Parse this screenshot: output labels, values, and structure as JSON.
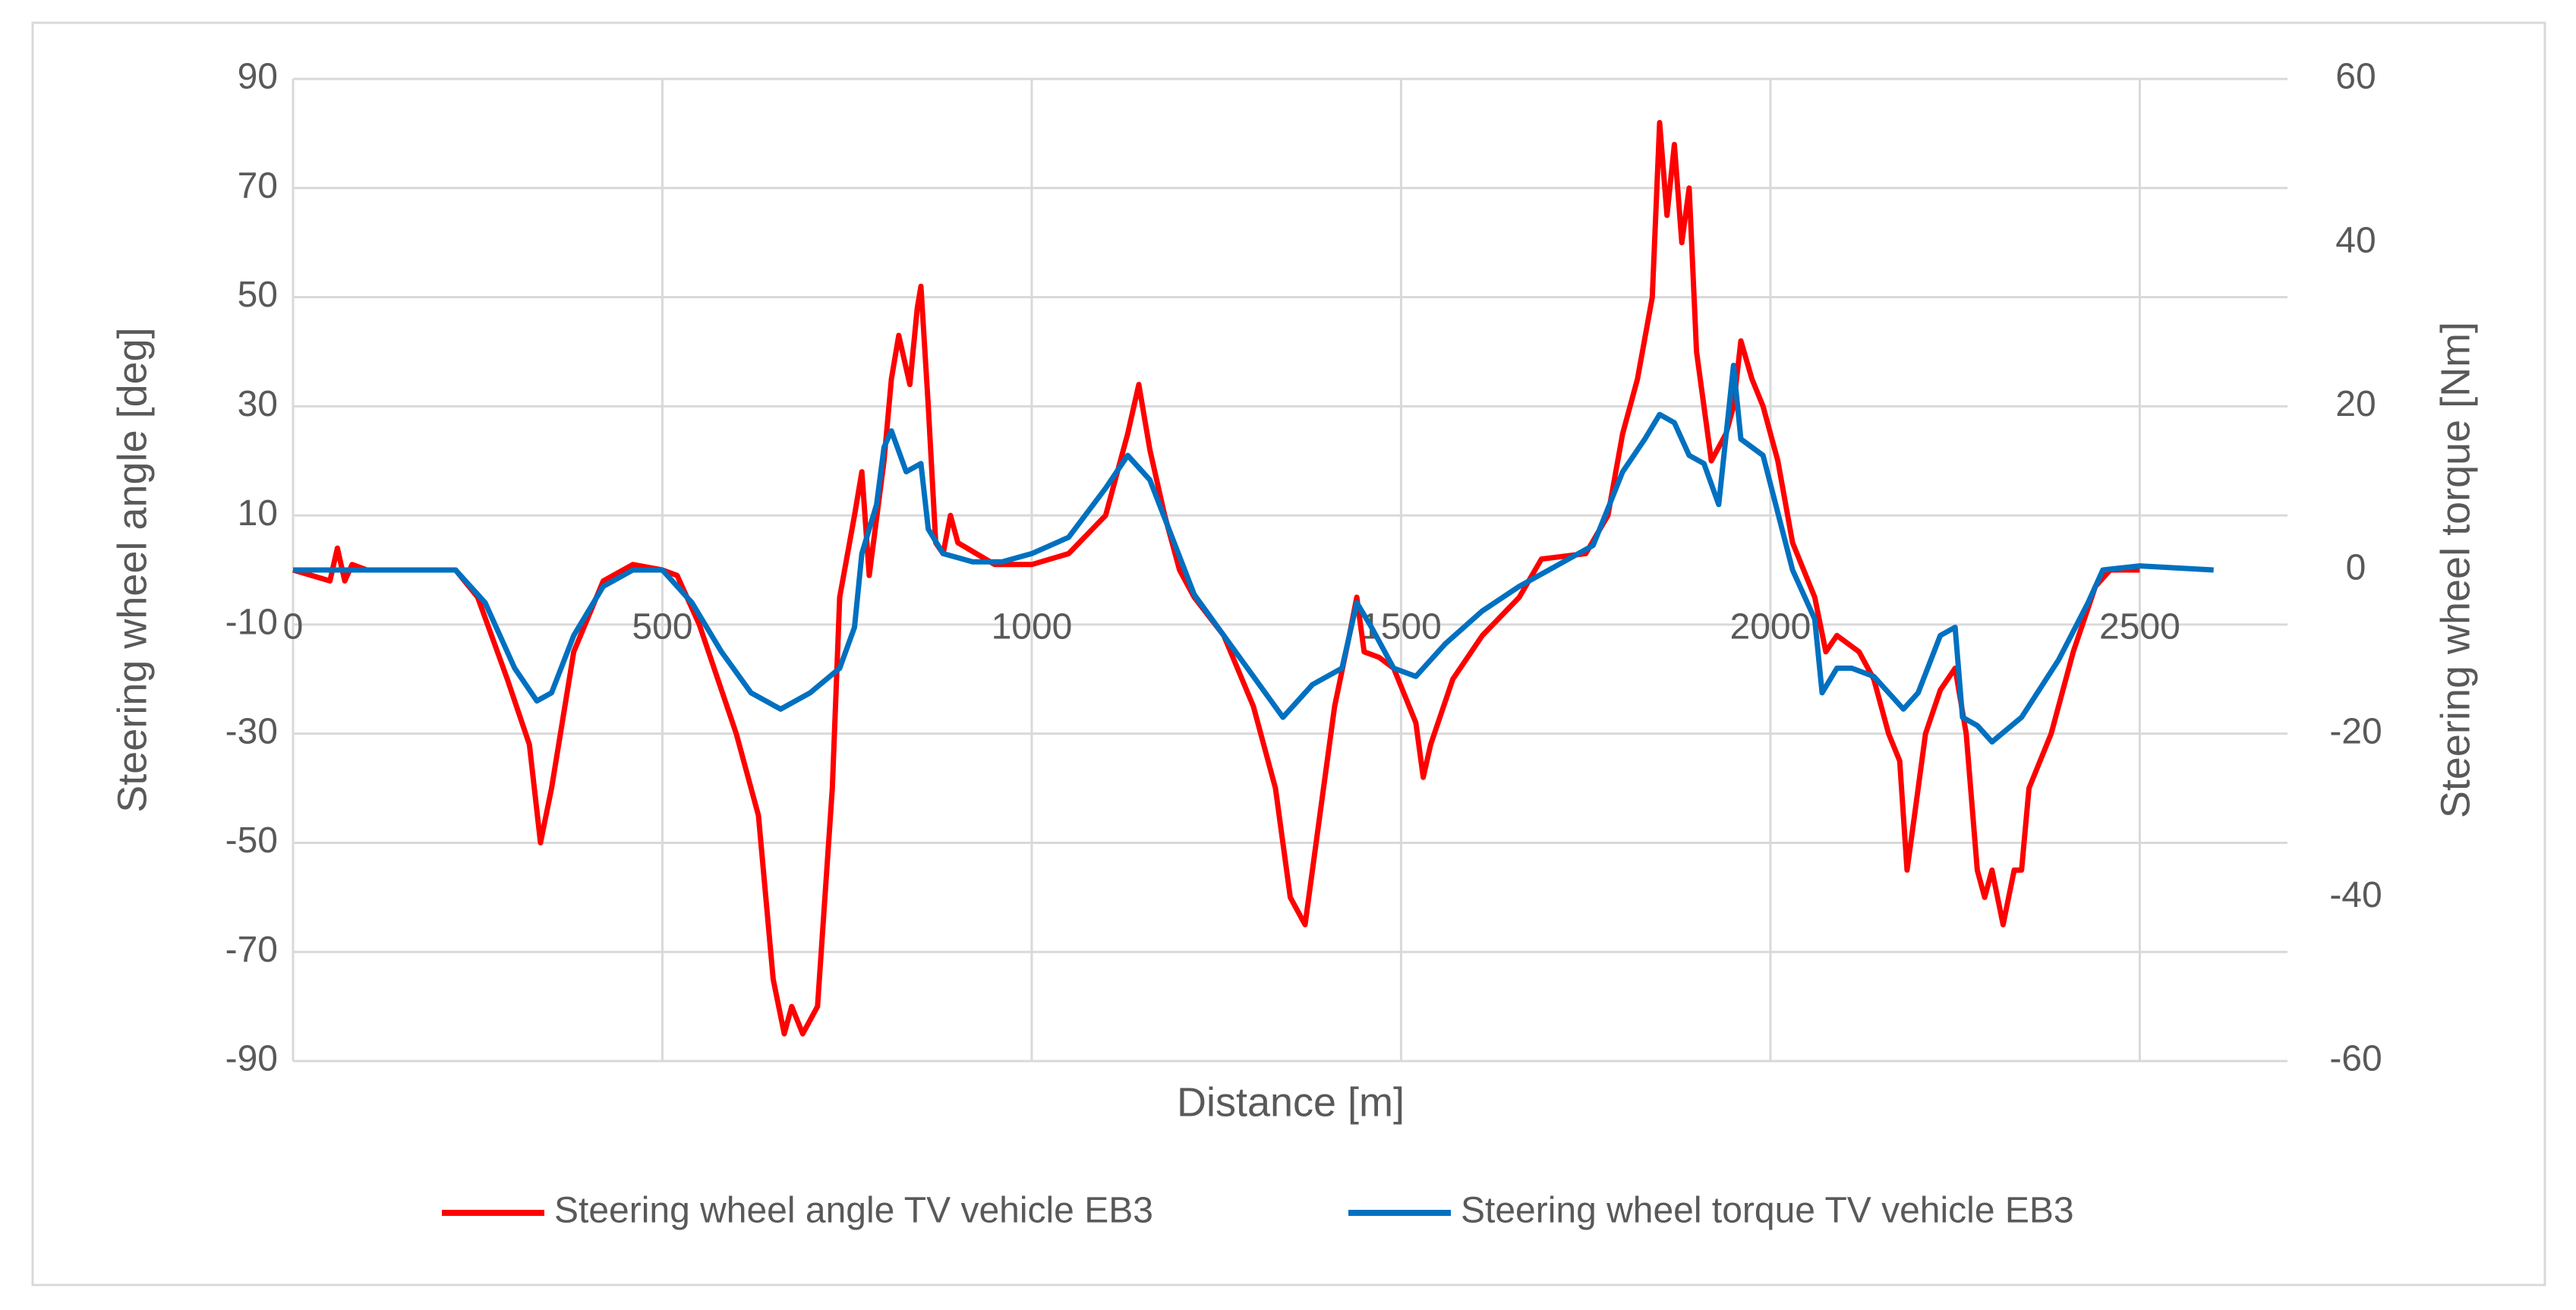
{
  "chart_data": {
    "type": "line",
    "xlabel": "Distance [m]",
    "ylabel": "Steering wheel angle [deg]",
    "y2label": "Steering wheel torque [Nm]",
    "xlim": [
      0,
      2700
    ],
    "xticks": [
      0,
      500,
      1000,
      1500,
      2000,
      2500
    ],
    "ylim": [
      -90,
      90
    ],
    "yticks": [
      -90,
      -70,
      -50,
      -30,
      -10,
      10,
      30,
      50,
      70,
      90
    ],
    "y2lim": [
      -60,
      60
    ],
    "y2ticks": [
      -60,
      -40,
      -20,
      0,
      20,
      40,
      60
    ],
    "grid": true,
    "legend": "bottom",
    "series": [
      {
        "name": "Steering wheel angle TV vehicle EB3",
        "color": "#ff0000",
        "x": [
          0,
          50,
          60,
          70,
          80,
          100,
          200,
          220,
          250,
          290,
          320,
          335,
          350,
          380,
          420,
          460,
          500,
          520,
          550,
          600,
          630,
          640,
          650,
          665,
          675,
          690,
          710,
          730,
          740,
          760,
          770,
          780,
          800,
          810,
          820,
          835,
          845,
          850,
          860,
          870,
          880,
          890,
          900,
          950,
          1000,
          1050,
          1100,
          1130,
          1145,
          1160,
          1180,
          1200,
          1220,
          1260,
          1300,
          1330,
          1350,
          1370,
          1390,
          1410,
          1430,
          1440,
          1450,
          1470,
          1490,
          1520,
          1530,
          1540,
          1570,
          1610,
          1660,
          1690,
          1750,
          1780,
          1800,
          1820,
          1840,
          1850,
          1860,
          1870,
          1880,
          1890,
          1900,
          1920,
          1940,
          1950,
          1960,
          1975,
          1990,
          2010,
          2030,
          2060,
          2075,
          2090,
          2120,
          2140,
          2160,
          2175,
          2185,
          2195,
          2210,
          2230,
          2250,
          2265,
          2280,
          2290,
          2300,
          2315,
          2330,
          2340,
          2350,
          2380,
          2410,
          2440,
          2460,
          2500
        ],
        "values": [
          0,
          -2,
          4,
          -2,
          1,
          0,
          0,
          0,
          -5,
          -20,
          -32,
          -50,
          -40,
          -15,
          -2,
          1,
          0,
          -1,
          -10,
          -30,
          -45,
          -60,
          -75,
          -85,
          -80,
          -85,
          -80,
          -40,
          -5,
          10,
          18,
          -1,
          20,
          35,
          43,
          34,
          48,
          52,
          30,
          5,
          3,
          10,
          5,
          1,
          1,
          3,
          10,
          25,
          34,
          22,
          10,
          0,
          -5,
          -12,
          -25,
          -40,
          -60,
          -65,
          -45,
          -25,
          -12,
          -5,
          -15,
          -16,
          -18,
          -28,
          -38,
          -32,
          -20,
          -12,
          -5,
          2,
          3,
          10,
          25,
          35,
          50,
          82,
          65,
          78,
          60,
          70,
          40,
          20,
          25,
          30,
          42,
          35,
          30,
          20,
          5,
          -5,
          -15,
          -12,
          -15,
          -20,
          -30,
          -35,
          -55,
          -45,
          -30,
          -22,
          -18,
          -30,
          -55,
          -60,
          -55,
          -65,
          -55,
          -55,
          -40,
          -30,
          -15,
          -3,
          0,
          0
        ]
      },
      {
        "name": "Steering wheel torque TV vehicle EB3",
        "color": "#0070c0",
        "axis": "y2",
        "x": [
          0,
          200,
          220,
          260,
          300,
          330,
          350,
          380,
          420,
          460,
          500,
          540,
          580,
          620,
          660,
          700,
          740,
          760,
          770,
          790,
          800,
          810,
          830,
          850,
          860,
          880,
          920,
          960,
          1000,
          1050,
          1100,
          1130,
          1160,
          1190,
          1220,
          1260,
          1300,
          1340,
          1380,
          1420,
          1440,
          1460,
          1490,
          1520,
          1560,
          1610,
          1660,
          1720,
          1760,
          1800,
          1830,
          1850,
          1870,
          1890,
          1910,
          1930,
          1950,
          1960,
          1990,
          2030,
          2060,
          2070,
          2090,
          2110,
          2140,
          2180,
          2200,
          2230,
          2250,
          2260,
          2280,
          2300,
          2340,
          2390,
          2430,
          2450,
          2500,
          2600
        ],
        "values": [
          0,
          0,
          0,
          -4,
          -12,
          -16,
          -15,
          -8,
          -2,
          0,
          0,
          -4,
          -10,
          -15,
          -17,
          -15,
          -12,
          -7,
          2,
          8,
          15,
          17,
          12,
          13,
          5,
          2,
          1,
          1,
          2,
          4,
          10,
          14,
          11,
          4,
          -3,
          -8,
          -13,
          -18,
          -14,
          -12,
          -4,
          -7,
          -12,
          -13,
          -9,
          -5,
          -2,
          1,
          3,
          12,
          16,
          19,
          18,
          14,
          13,
          8,
          25,
          16,
          14,
          0,
          -6,
          -15,
          -12,
          -12,
          -13,
          -17,
          -15,
          -8,
          -7,
          -18,
          -19,
          -21,
          -18,
          -11,
          -4,
          0,
          0.5,
          0
        ]
      }
    ]
  }
}
